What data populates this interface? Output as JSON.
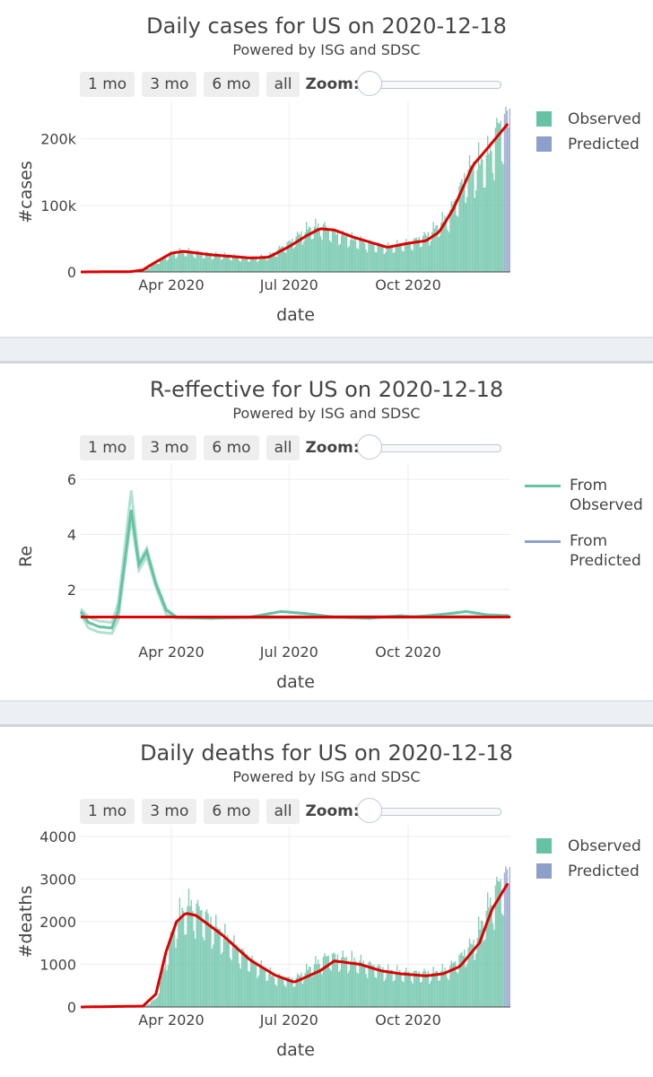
{
  "range_buttons": [
    "1 mo",
    "3 mo",
    "6 mo",
    "all"
  ],
  "zoom_label": "Zoom:",
  "subtitle": "Powered by ISG and SDSC",
  "xlabel": "date",
  "colors": {
    "observed": "#66c2a5",
    "predicted": "#8da0cb",
    "fit": "#dd0000"
  },
  "chart_data": [
    {
      "type": "bar",
      "title": "Daily cases for US on 2020-12-18",
      "xlabel": "date",
      "ylabel": "#cases",
      "x_range": [
        "2020-01-22",
        "2020-12-18"
      ],
      "ylim": [
        0,
        240000
      ],
      "yticks": [
        0,
        100000,
        200000
      ],
      "ytick_labels": [
        "0",
        "100k",
        "200k"
      ],
      "xticks": [
        "2020-04-01",
        "2020-07-01",
        "2020-10-01"
      ],
      "xtick_labels": [
        "Apr 2020",
        "Jul 2020",
        "Oct 2020"
      ],
      "legend": [
        "Observed",
        "Predicted"
      ],
      "legend_position": "top-right",
      "predicted_start": "2020-12-14",
      "bar_key_points": [
        [
          "2020-01-22",
          0
        ],
        [
          "2020-03-01",
          0
        ],
        [
          "2020-03-10",
          1000
        ],
        [
          "2020-03-20",
          15000
        ],
        [
          "2020-04-01",
          28000
        ],
        [
          "2020-04-10",
          32000
        ],
        [
          "2020-04-25",
          28000
        ],
        [
          "2020-05-15",
          24000
        ],
        [
          "2020-06-01",
          21000
        ],
        [
          "2020-06-15",
          24000
        ],
        [
          "2020-07-01",
          45000
        ],
        [
          "2020-07-15",
          65000
        ],
        [
          "2020-07-25",
          70000
        ],
        [
          "2020-08-10",
          55000
        ],
        [
          "2020-09-01",
          42000
        ],
        [
          "2020-09-15",
          38000
        ],
        [
          "2020-10-01",
          44000
        ],
        [
          "2020-10-15",
          55000
        ],
        [
          "2020-11-01",
          85000
        ],
        [
          "2020-11-15",
          150000
        ],
        [
          "2020-12-01",
          175000
        ],
        [
          "2020-12-10",
          220000
        ],
        [
          "2020-12-18",
          232000
        ]
      ],
      "fit_points": [
        [
          "2020-01-22",
          0
        ],
        [
          "2020-03-01",
          500
        ],
        [
          "2020-03-10",
          3000
        ],
        [
          "2020-03-20",
          15000
        ],
        [
          "2020-04-01",
          28000
        ],
        [
          "2020-04-10",
          31000
        ],
        [
          "2020-05-01",
          26000
        ],
        [
          "2020-06-01",
          21000
        ],
        [
          "2020-06-15",
          22000
        ],
        [
          "2020-07-01",
          38000
        ],
        [
          "2020-07-15",
          55000
        ],
        [
          "2020-07-25",
          65000
        ],
        [
          "2020-08-05",
          63000
        ],
        [
          "2020-08-20",
          52000
        ],
        [
          "2020-09-15",
          37000
        ],
        [
          "2020-10-01",
          43000
        ],
        [
          "2020-10-15",
          47000
        ],
        [
          "2020-10-25",
          60000
        ],
        [
          "2020-11-05",
          95000
        ],
        [
          "2020-11-20",
          160000
        ],
        [
          "2020-12-01",
          185000
        ],
        [
          "2020-12-18",
          225000
        ]
      ]
    },
    {
      "type": "line",
      "title": "R-effective for US on 2020-12-18",
      "xlabel": "date",
      "ylabel": "Re",
      "x_range": [
        "2020-01-22",
        "2020-12-18"
      ],
      "ylim": [
        0.2,
        6.2
      ],
      "yticks": [
        2,
        4,
        6
      ],
      "ytick_labels": [
        "2",
        "4",
        "6"
      ],
      "xticks": [
        "2020-04-01",
        "2020-07-01",
        "2020-10-01"
      ],
      "xtick_labels": [
        "Apr 2020",
        "Jul 2020",
        "Oct 2020"
      ],
      "legend": [
        "From Observed",
        "From Predicted"
      ],
      "legend_position": "top-right",
      "reference_line": 1.0,
      "series": [
        {
          "name": "From Observed",
          "band_upper": [
            [
              "2020-01-22",
              1.3
            ],
            [
              "2020-01-28",
              1.0
            ],
            [
              "2020-02-05",
              0.85
            ],
            [
              "2020-02-15",
              0.8
            ],
            [
              "2020-02-20",
              1.5
            ],
            [
              "2020-02-25",
              3.5
            ],
            [
              "2020-03-01",
              5.6
            ],
            [
              "2020-03-07",
              3.0
            ],
            [
              "2020-03-13",
              3.5
            ],
            [
              "2020-03-20",
              2.3
            ],
            [
              "2020-03-28",
              1.3
            ],
            [
              "2020-04-05",
              1.0
            ],
            [
              "2020-12-18",
              1.05
            ]
          ],
          "band_lower": [
            [
              "2020-01-22",
              1.1
            ],
            [
              "2020-01-28",
              0.6
            ],
            [
              "2020-02-05",
              0.45
            ],
            [
              "2020-02-15",
              0.4
            ],
            [
              "2020-02-20",
              0.9
            ],
            [
              "2020-02-25",
              2.8
            ],
            [
              "2020-03-01",
              4.6
            ],
            [
              "2020-03-07",
              2.7
            ],
            [
              "2020-03-13",
              3.2
            ],
            [
              "2020-03-20",
              2.1
            ],
            [
              "2020-03-28",
              1.1
            ],
            [
              "2020-04-05",
              0.95
            ],
            [
              "2020-12-18",
              1.0
            ]
          ],
          "values": [
            [
              "2020-01-22",
              1.2
            ],
            [
              "2020-01-28",
              0.8
            ],
            [
              "2020-02-05",
              0.65
            ],
            [
              "2020-02-15",
              0.6
            ],
            [
              "2020-02-20",
              1.2
            ],
            [
              "2020-02-25",
              3.0
            ],
            [
              "2020-03-01",
              4.9
            ],
            [
              "2020-03-07",
              2.9
            ],
            [
              "2020-03-13",
              3.4
            ],
            [
              "2020-03-20",
              2.2
            ],
            [
              "2020-03-28",
              1.25
            ],
            [
              "2020-04-05",
              1.0
            ],
            [
              "2020-05-01",
              0.95
            ],
            [
              "2020-06-01",
              1.0
            ],
            [
              "2020-06-25",
              1.2
            ],
            [
              "2020-07-15",
              1.12
            ],
            [
              "2020-08-05",
              1.0
            ],
            [
              "2020-09-01",
              0.95
            ],
            [
              "2020-09-25",
              1.05
            ],
            [
              "2020-10-05",
              1.0
            ],
            [
              "2020-11-01",
              1.12
            ],
            [
              "2020-11-15",
              1.2
            ],
            [
              "2020-12-01",
              1.08
            ],
            [
              "2020-12-18",
              1.05
            ]
          ]
        }
      ]
    },
    {
      "type": "bar",
      "title": "Daily deaths for US on 2020-12-18",
      "xlabel": "date",
      "ylabel": "#deaths",
      "x_range": [
        "2020-01-22",
        "2020-12-18"
      ],
      "ylim": [
        0,
        4000
      ],
      "yticks": [
        0,
        1000,
        2000,
        3000,
        4000
      ],
      "ytick_labels": [
        "0",
        "1000",
        "2000",
        "3000",
        "4000"
      ],
      "xticks": [
        "2020-04-01",
        "2020-07-01",
        "2020-10-01"
      ],
      "xtick_labels": [
        "Apr 2020",
        "Jul 2020",
        "Oct 2020"
      ],
      "legend": [
        "Observed",
        "Predicted"
      ],
      "legend_position": "top-right",
      "predicted_start": "2020-12-14",
      "bar_key_points": [
        [
          "2020-01-22",
          0
        ],
        [
          "2020-03-10",
          0
        ],
        [
          "2020-03-20",
          200
        ],
        [
          "2020-03-28",
          1200
        ],
        [
          "2020-04-05",
          2100
        ],
        [
          "2020-04-15",
          2400
        ],
        [
          "2020-04-25",
          2200
        ],
        [
          "2020-05-10",
          1700
        ],
        [
          "2020-06-01",
          1100
        ],
        [
          "2020-06-20",
          700
        ],
        [
          "2020-07-05",
          650
        ],
        [
          "2020-07-20",
          1000
        ],
        [
          "2020-08-01",
          1200
        ],
        [
          "2020-08-20",
          1100
        ],
        [
          "2020-09-15",
          850
        ],
        [
          "2020-10-01",
          800
        ],
        [
          "2020-10-20",
          800
        ],
        [
          "2020-11-01",
          900
        ],
        [
          "2020-11-20",
          1500
        ],
        [
          "2020-12-01",
          2300
        ],
        [
          "2020-12-10",
          2900
        ],
        [
          "2020-12-18",
          3100
        ]
      ],
      "fit_points": [
        [
          "2020-01-22",
          0
        ],
        [
          "2020-03-10",
          20
        ],
        [
          "2020-03-20",
          300
        ],
        [
          "2020-03-28",
          1300
        ],
        [
          "2020-04-05",
          2000
        ],
        [
          "2020-04-12",
          2200
        ],
        [
          "2020-04-20",
          2150
        ],
        [
          "2020-05-10",
          1700
        ],
        [
          "2020-06-01",
          1100
        ],
        [
          "2020-06-20",
          750
        ],
        [
          "2020-07-05",
          580
        ],
        [
          "2020-07-25",
          850
        ],
        [
          "2020-08-05",
          1080
        ],
        [
          "2020-08-25",
          1000
        ],
        [
          "2020-09-10",
          850
        ],
        [
          "2020-09-25",
          780
        ],
        [
          "2020-10-15",
          730
        ],
        [
          "2020-10-28",
          780
        ],
        [
          "2020-11-10",
          950
        ],
        [
          "2020-11-25",
          1500
        ],
        [
          "2020-12-05",
          2300
        ],
        [
          "2020-12-18",
          2950
        ]
      ]
    }
  ]
}
